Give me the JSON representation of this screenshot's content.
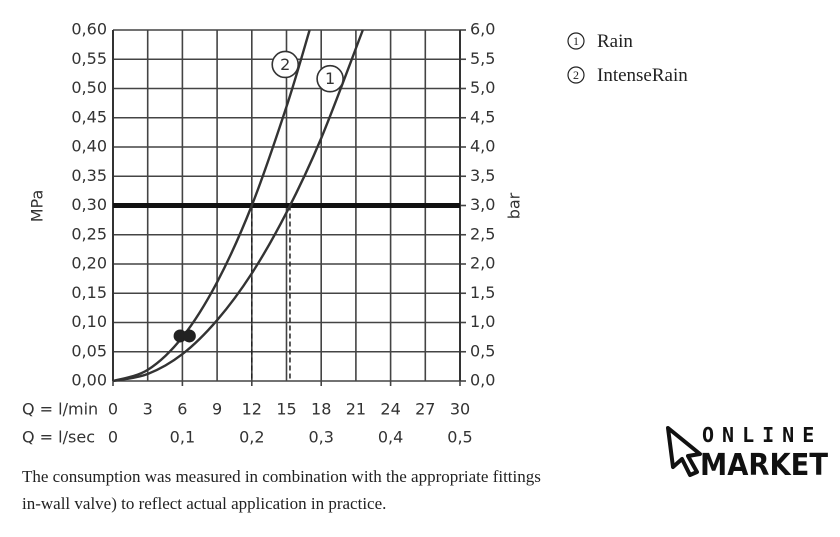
{
  "chart_data": {
    "type": "line",
    "ylabel": "MPa",
    "y2label": "bar",
    "xlabel": "Q = l/min",
    "x2label": "Q = l/sec",
    "xlim": [
      0,
      30
    ],
    "xticks": [
      0,
      3,
      6,
      9,
      12,
      15,
      18,
      21,
      24,
      27,
      30
    ],
    "x2lim": [
      0,
      0.5
    ],
    "x2ticks": [
      0,
      {
        "value": 0.1,
        "label": "0,1"
      },
      {
        "value": 0.2,
        "label": "0,2"
      },
      {
        "value": 0.3,
        "label": "0,3"
      },
      {
        "value": 0.4,
        "label": "0,4"
      },
      {
        "value": 0.5,
        "label": "0,5"
      }
    ],
    "ylim": [
      0,
      0.6
    ],
    "yticks": [
      {
        "value": 0,
        "label": "0,00"
      },
      {
        "value": 0.05,
        "label": "0,05"
      },
      {
        "value": 0.1,
        "label": "0,10"
      },
      {
        "value": 0.15,
        "label": "0,15"
      },
      {
        "value": 0.2,
        "label": "0,20"
      },
      {
        "value": 0.25,
        "label": "0,25"
      },
      {
        "value": 0.3,
        "label": "0,30"
      },
      {
        "value": 0.35,
        "label": "0,35"
      },
      {
        "value": 0.4,
        "label": "0,40"
      },
      {
        "value": 0.45,
        "label": "0,45"
      },
      {
        "value": 0.5,
        "label": "0,50"
      },
      {
        "value": 0.55,
        "label": "0,55"
      },
      {
        "value": 0.6,
        "label": "0,60"
      }
    ],
    "y2lim": [
      0,
      6
    ],
    "y2ticks": [
      {
        "value": 0,
        "label": "0,0"
      },
      {
        "value": 0.5,
        "label": "0,5"
      },
      {
        "value": 1,
        "label": "1,0"
      },
      {
        "value": 1.5,
        "label": "1,5"
      },
      {
        "value": 2,
        "label": "2,0"
      },
      {
        "value": 2.5,
        "label": "2,5"
      },
      {
        "value": 3,
        "label": "3,0"
      },
      {
        "value": 3.5,
        "label": "3,5"
      },
      {
        "value": 4,
        "label": "4,0"
      },
      {
        "value": 4.5,
        "label": "4,5"
      },
      {
        "value": 5,
        "label": "5,0"
      },
      {
        "value": 5.5,
        "label": "5,5"
      },
      {
        "value": 6,
        "label": "6,0"
      }
    ],
    "grid": true,
    "threshold": 0.3,
    "drop_lines_x": [
      12,
      15.3
    ],
    "points": {
      "x": [
        5.8,
        6.6
      ],
      "y": [
        0.077,
        0.077
      ]
    },
    "series": [
      {
        "name": "Rain",
        "marker_label": "1",
        "color": "#333333",
        "x": [
          0,
          3,
          6,
          9,
          12,
          15,
          18,
          21.6
        ],
        "values": [
          0,
          0.012,
          0.046,
          0.104,
          0.184,
          0.288,
          0.415,
          0.6
        ]
      },
      {
        "name": "IntenseRain",
        "marker_label": "2",
        "color": "#333333",
        "x": [
          0,
          3,
          6,
          9,
          12,
          15,
          17
        ],
        "values": [
          0,
          0.019,
          0.075,
          0.169,
          0.3,
          0.469,
          0.6
        ]
      }
    ]
  },
  "caption": [
    "The consumption was measured in combination with the appropriate fittings",
    "in-wall valve) to reflect actual application in practice."
  ],
  "logo": {
    "line1": "ONLINE",
    "line2": "MARKET"
  }
}
